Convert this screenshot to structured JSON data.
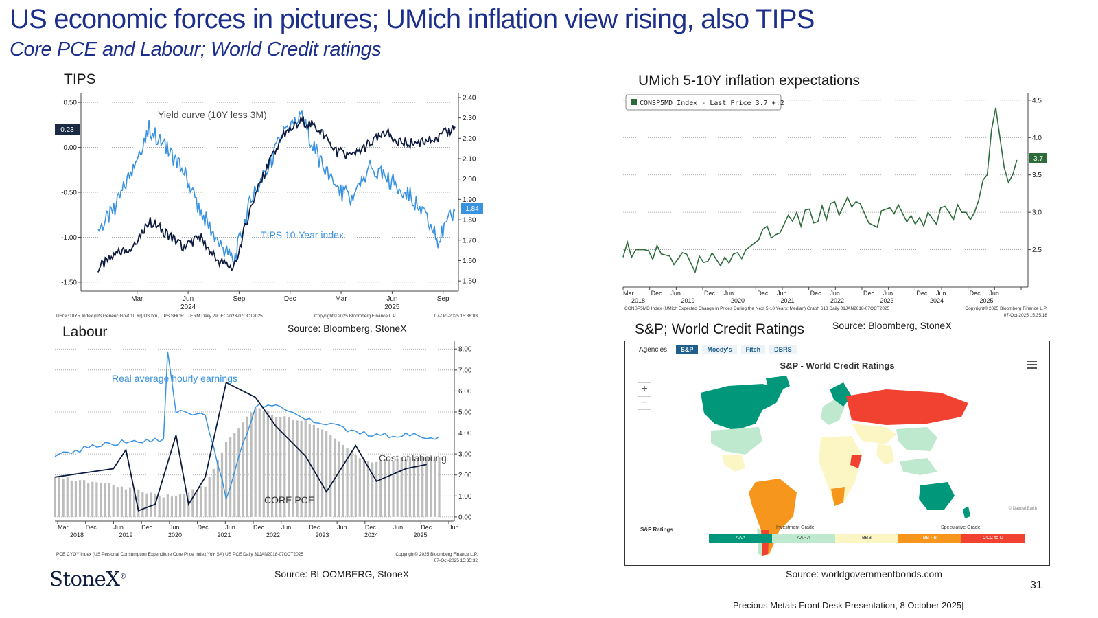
{
  "header": {
    "title": "US  economic forces in pictures; UMich inflation view rising, also TIPS",
    "subtitle": "Core PCE and Labour; World Credit ratings"
  },
  "panels": {
    "tips": {
      "title": "TIPS",
      "source": "Source: Bloomberg, StoneX",
      "label_yield": "Yield curve (10Y less 3M)",
      "label_tips": "TIPS 10-Year index",
      "badge_left": "0.23",
      "badge_right": "1.84",
      "left_ticks": [
        "0.50",
        "0.00",
        "-0.50",
        "-1.00",
        "-1.50"
      ],
      "right_ticks": [
        "2.40",
        "2.30",
        "2.20",
        "2.10",
        "2.00",
        "1.90",
        "1.80",
        "1.70",
        "1.60",
        "1.50"
      ],
      "x_ticks": [
        "Mar",
        "Jun",
        "Sep",
        "Dec",
        "Mar",
        "Jun",
        "Sep"
      ],
      "years": [
        "2024",
        "2025"
      ],
      "footnote_left": "USGG10YR Index (US Generic Govt 10 Yr) US bm, TIPS SHORT TERM Daily 29DEC2023-07OCT2025",
      "footnote_mid": "Copyright© 2025 Bloomberg Finance L.P.",
      "footnote_right": "07-Oct-2025 15:36:03"
    },
    "umich": {
      "title": "UMich 5-10Y inflation expectations",
      "source": "Source: Bloomberg, StoneX",
      "legend": "CONSP5MD Index - Last Price 3.7  +.2",
      "badge": "3.7",
      "right_ticks": [
        "4.5",
        "4.0",
        "3.5",
        "3.0",
        "2.5"
      ],
      "x_ticks": [
        "Mar ...",
        "... Dec ...",
        "Jun ...",
        "... Dec ...",
        "Jun ...",
        "... Dec ...",
        "Jun ...",
        "... Dec ...",
        "Jun ...",
        "... Dec ...",
        "Jun ...",
        "... Dec ...",
        "Jun ...",
        "... Dec ...",
        "Jun ...",
        "..."
      ],
      "years": [
        "2018",
        "2019",
        "2020",
        "2021",
        "2022",
        "2023",
        "2024",
        "2025"
      ],
      "footnote_left": "CONSP5MD Index (UMich Expected Change in Prices During the Next 5-10 Years: Median) Graph 613 Daily 01JAN2018-07OCT2025",
      "footnote_right": "Copyright© 2025 Bloomberg Finance L.P.",
      "footnote_date": "07-Oct-2025 15:35:18"
    },
    "labour": {
      "title": "Labour",
      "source": "Source: BLOOMBERG, StoneX",
      "label_earnings": "Real average hourly earnings",
      "label_labour": "Cost of labour g",
      "label_core": "CORE PCE",
      "right_ticks": [
        "8.00",
        "7.00",
        "6.00",
        "5.00",
        "4.00",
        "3.00",
        "2.00",
        "1.00",
        "0.00"
      ],
      "x_ticks": [
        "Mar ...",
        "Dec ...",
        "Jun ...",
        "Dec ...",
        "Jun ...",
        "Dec ...",
        "Jun ...",
        "Dec ...",
        "Jun ...",
        "Dec ...",
        "Jun ...",
        "Dec ...",
        "Jun ...",
        "Dec ...",
        "Jun ..."
      ],
      "years": [
        "2018",
        "2019",
        "2020",
        "2021",
        "2022",
        "2023",
        "2024",
        "2025"
      ],
      "footnote_left": "PCE CYOY Index (US Personal Consumption Expenditure Core Price Index YoY SA) US PCE Daily 31JAN2018-07OCT2025",
      "footnote_right": "Copyright© 2025 Bloomberg Finance L.P.",
      "footnote_date": "07-Oct-2025 15:35:32"
    },
    "credit": {
      "title": "S&P; World Credit Ratings",
      "source": "Source: worldgovernmentbonds.com",
      "agencies_label": "Agencies:",
      "tabs": [
        "S&P",
        "Moody's",
        "Fitch",
        "DBRS"
      ],
      "map_title": "S&P - World Credit Ratings",
      "attribution": "© Natural Earth",
      "legend_title": "S&P Ratings",
      "investment_label": "Investment Grade",
      "speculative_label": "Speculative Grade",
      "legend": [
        {
          "label": "AAA",
          "color": "#00977a"
        },
        {
          "label": "AA - A",
          "color": "#bfe9cf"
        },
        {
          "label": "BBB",
          "color": "#fbf6c4"
        },
        {
          "label": "BB - B",
          "color": "#f7961d"
        },
        {
          "label": "CCC to D",
          "color": "#f04131"
        }
      ]
    }
  },
  "footer": {
    "logo": "StoneX",
    "page_number": "31",
    "presentation": "Precious Metals Front Desk Presentation, 8 October 2025|"
  },
  "chart_data": [
    {
      "type": "line",
      "title": "TIPS",
      "x_range": [
        "2023-12-29",
        "2025-10-07"
      ],
      "series": [
        {
          "name": "Yield curve (10Y less 3M)",
          "axis": "left",
          "color": "#0d1b3e",
          "x": [
            "2024-01",
            "2024-02",
            "2024-03",
            "2024-04",
            "2024-05",
            "2024-06",
            "2024-07",
            "2024-08",
            "2024-09",
            "2024-10",
            "2024-11",
            "2024-12",
            "2025-01",
            "2025-02",
            "2025-03",
            "2025-04",
            "2025-05",
            "2025-06",
            "2025-07",
            "2025-08",
            "2025-09",
            "2025-10"
          ],
          "values": [
            -1.35,
            -1.2,
            -1.1,
            -0.82,
            -0.95,
            -1.1,
            -1.0,
            -1.25,
            -1.35,
            -0.65,
            -0.2,
            0.15,
            0.3,
            0.2,
            -0.05,
            -0.1,
            0.05,
            0.15,
            0.05,
            0.05,
            0.1,
            0.23
          ]
        },
        {
          "name": "TIPS 10-Year index",
          "axis": "right",
          "color": "#3a93e0",
          "x": [
            "2024-01",
            "2024-02",
            "2024-03",
            "2024-04",
            "2024-05",
            "2024-06",
            "2024-07",
            "2024-08",
            "2024-09",
            "2024-10",
            "2024-11",
            "2024-12",
            "2025-01",
            "2025-02",
            "2025-03",
            "2025-04",
            "2025-05",
            "2025-06",
            "2025-07",
            "2025-08",
            "2025-09",
            "2025-10"
          ],
          "values": [
            1.75,
            1.85,
            2.05,
            2.25,
            2.15,
            2.05,
            1.85,
            1.7,
            1.6,
            1.9,
            2.05,
            2.25,
            2.3,
            2.1,
            1.95,
            1.9,
            2.05,
            2.0,
            1.95,
            1.85,
            1.7,
            1.84
          ]
        }
      ],
      "left_ylim": [
        -1.6,
        0.6
      ],
      "right_ylim": [
        1.45,
        2.42
      ]
    },
    {
      "type": "line",
      "title": "UMich 5-10Y inflation expectations",
      "series": [
        {
          "name": "CONSP5MD Index",
          "color": "#2d6b3a",
          "x": [
            "2018-01",
            "2018-06",
            "2019-01",
            "2019-06",
            "2020-01",
            "2020-06",
            "2021-01",
            "2021-06",
            "2022-01",
            "2022-06",
            "2023-01",
            "2023-06",
            "2024-01",
            "2024-06",
            "2024-12",
            "2025-03",
            "2025-04",
            "2025-05",
            "2025-06",
            "2025-07",
            "2025-08",
            "2025-09",
            "2025-10"
          ],
          "values": [
            2.5,
            2.5,
            2.4,
            2.3,
            2.4,
            2.5,
            2.8,
            2.9,
            3.0,
            3.1,
            2.9,
            3.0,
            2.9,
            3.0,
            3.0,
            3.5,
            4.1,
            4.4,
            4.0,
            3.6,
            3.4,
            3.5,
            3.7
          ]
        }
      ],
      "ylim": [
        2.0,
        4.6
      ]
    },
    {
      "type": "bar",
      "title": "Labour",
      "series": [
        {
          "name": "CORE PCE",
          "kind": "bar",
          "color": "#bdbdbd",
          "x": [
            "2018",
            "2019",
            "2020-03",
            "2020-06",
            "2021-01",
            "2021-06",
            "2022-01",
            "2022-06",
            "2023-01",
            "2023-06",
            "2024-01",
            "2024-06",
            "2025-01",
            "2025-08"
          ],
          "values": [
            1.9,
            1.6,
            1.0,
            1.0,
            1.5,
            3.5,
            5.2,
            4.8,
            4.6,
            4.1,
            2.9,
            2.6,
            2.8,
            2.9
          ]
        },
        {
          "name": "Real average hourly earnings",
          "kind": "line",
          "color": "#3a93e0",
          "x": [
            "2018",
            "2019",
            "2020-03",
            "2020-04",
            "2020-06",
            "2021-01",
            "2021-06",
            "2022-01",
            "2022-06",
            "2023-01",
            "2023-06",
            "2024-01",
            "2024-06",
            "2025-01",
            "2025-08"
          ],
          "values": [
            2.9,
            3.5,
            3.7,
            7.9,
            5.0,
            4.8,
            0.9,
            5.3,
            5.4,
            4.6,
            4.5,
            4.0,
            3.9,
            3.9,
            3.8
          ]
        },
        {
          "name": "Cost of labour",
          "kind": "line",
          "color": "#0d1b3e",
          "x": [
            "2018",
            "2019-03",
            "2019-06",
            "2019-09",
            "2020-01",
            "2020-06",
            "2020-09",
            "2021-01",
            "2021-06",
            "2022-01",
            "2022-06",
            "2023-01",
            "2023-06",
            "2024-01",
            "2024-06",
            "2025-01",
            "2025-06"
          ],
          "values": [
            1.9,
            2.3,
            3.2,
            0.3,
            0.6,
            3.9,
            0.6,
            1.9,
            6.4,
            5.7,
            4.3,
            2.9,
            1.2,
            3.4,
            1.7,
            2.3,
            2.5
          ]
        }
      ],
      "ylim": [
        -0.2,
        8.4
      ]
    }
  ]
}
